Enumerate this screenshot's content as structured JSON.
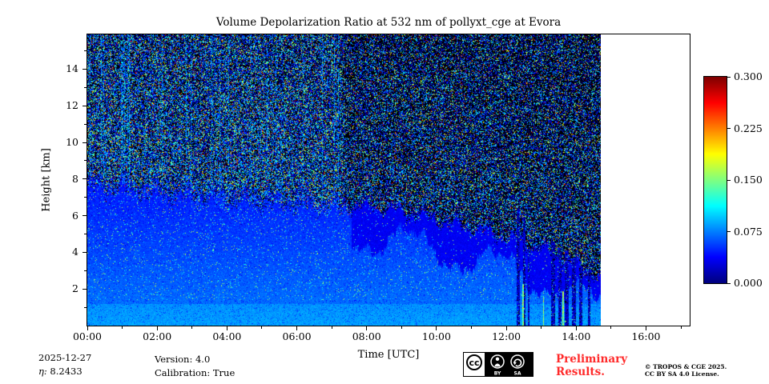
{
  "chart_data": {
    "type": "heatmap",
    "title": "Volume Depolarization Ratio at 532 nm of pollyxt_cge at Evora",
    "xlabel": "Time [UTC]",
    "ylabel": "Height [km]",
    "x_tick_hours": [
      0,
      2,
      4,
      6,
      8,
      10,
      12,
      14,
      16
    ],
    "x_tick_labels": [
      "00:00",
      "02:00",
      "04:00",
      "06:00",
      "08:00",
      "10:00",
      "12:00",
      "14:00",
      "16:00"
    ],
    "x_range_hours": [
      0,
      17.25
    ],
    "y_tick_km": [
      2,
      4,
      6,
      8,
      10,
      12,
      14
    ],
    "y_range_km": [
      0,
      15.9
    ],
    "data_end_hour": 14.7,
    "grid": false,
    "colorbar": {
      "vmin": 0.0,
      "vmax": 0.3,
      "colormap": "jet",
      "tick_labels": [
        "0.300",
        "0.225",
        "0.150",
        "0.075",
        "0.000"
      ]
    },
    "render_params": {
      "day_night_split_hour": 7.35,
      "band_start_hour": 7.55,
      "signal_top_km": [
        [
          0,
          7.8
        ],
        [
          2,
          7.4
        ],
        [
          4,
          7.05
        ],
        [
          6,
          6.75
        ],
        [
          7.3,
          6.55
        ],
        [
          8,
          6.6
        ],
        [
          9,
          6.3
        ],
        [
          10,
          5.85
        ],
        [
          11,
          5.35
        ],
        [
          12,
          4.85
        ],
        [
          13,
          4.25
        ],
        [
          14,
          3.3
        ],
        [
          14.7,
          2.7
        ]
      ],
      "precip_streaks": [
        {
          "t": 12.33,
          "w": 0.1,
          "ztop": 6.4
        },
        {
          "t": 12.5,
          "w": 0.06,
          "ztop": 5.9
        },
        {
          "t": 12.62,
          "w": 0.05,
          "ztop": 4.2
        },
        {
          "t": 13.33,
          "w": 0.12,
          "ztop": 4.6
        },
        {
          "t": 13.52,
          "w": 0.1,
          "ztop": 4.3
        },
        {
          "t": 13.72,
          "w": 0.13,
          "ztop": 4.1
        },
        {
          "t": 13.92,
          "w": 0.1,
          "ztop": 3.7
        },
        {
          "t": 14.12,
          "w": 0.09,
          "ztop": 3.3
        },
        {
          "t": 14.35,
          "w": 0.07,
          "ztop": 2.9
        }
      ],
      "bright_streaks": [
        {
          "t": 12.47,
          "w": 0.05,
          "zmax": 2.3
        },
        {
          "t": 13.05,
          "w": 0.04,
          "zmax": 1.6
        },
        {
          "t": 13.62,
          "w": 0.04,
          "zmax": 1.9
        }
      ]
    }
  },
  "footer": {
    "date": "2025-12-27",
    "eta_symbol": "η:",
    "eta_value": "8.2433",
    "version": "Version: 4.0",
    "calibration": "Calibration: True",
    "preliminary": [
      "Preliminary",
      "Results."
    ],
    "copyright": [
      "© TROPOS & CGE 2025.",
      "CC BY SA 4.0 License."
    ],
    "cc_logo": "cc",
    "cc_badge_labels": [
      "BY",
      "SA"
    ]
  }
}
